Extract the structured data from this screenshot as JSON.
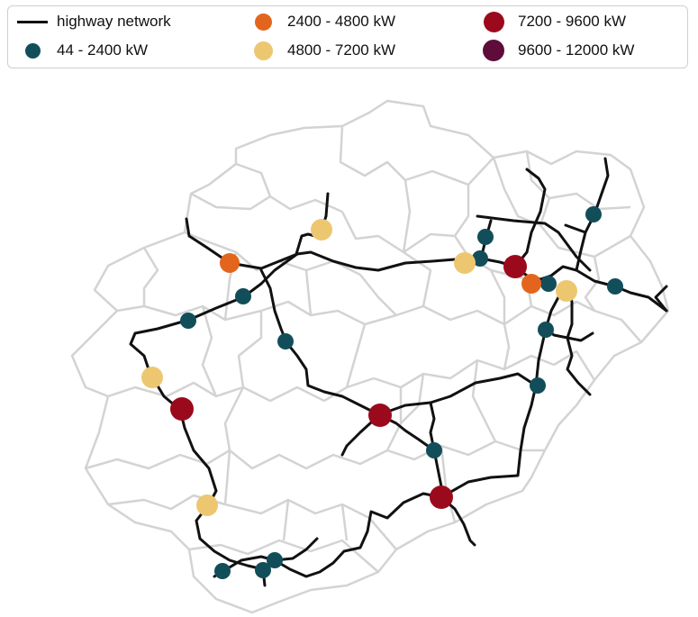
{
  "legend": {
    "items": [
      {
        "label": "highway network",
        "kind": "line",
        "color": "#111111"
      },
      {
        "label": "44 - 2400 kW",
        "kind": "dot",
        "color": "#124e5a",
        "size": 1
      },
      {
        "label": "2400 - 4800 kW",
        "kind": "dot",
        "color": "#e3651d",
        "size": 2
      },
      {
        "label": "4800 - 7200 kW",
        "kind": "dot",
        "color": "#edc770",
        "size": 3
      },
      {
        "label": "7200 - 9600 kW",
        "kind": "dot",
        "color": "#9b0a1c",
        "size": 4
      },
      {
        "label": "9600 - 12000 kW",
        "kind": "dot",
        "color": "#5e0d3b",
        "size": 5
      }
    ]
  },
  "colors": {
    "border": "#d3d3d3",
    "highway": "#111111"
  }
}
